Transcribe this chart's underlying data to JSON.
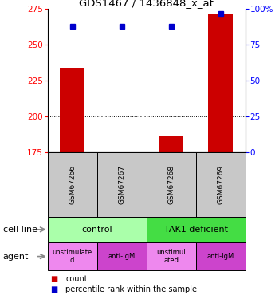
{
  "title": "GDS1467 / 1436848_x_at",
  "samples": [
    "GSM67266",
    "GSM67267",
    "GSM67268",
    "GSM67269"
  ],
  "bar_values": [
    234,
    175,
    187,
    271
  ],
  "bar_base": 175,
  "dot_values_pct": [
    88,
    88,
    88,
    97
  ],
  "ylim_left": [
    175,
    275
  ],
  "ylim_right": [
    0,
    100
  ],
  "yticks_left": [
    175,
    200,
    225,
    250,
    275
  ],
  "yticks_right": [
    0,
    25,
    50,
    75,
    100
  ],
  "bar_color": "#cc0000",
  "dot_color": "#0000cc",
  "cell_line_labels": [
    "control",
    "TAK1 deficient"
  ],
  "cell_line_spans": [
    [
      0,
      2
    ],
    [
      2,
      4
    ]
  ],
  "cell_line_colors": [
    "#aaffaa",
    "#44dd44"
  ],
  "agent_labels": [
    "unstimulate\nd",
    "anti-IgM",
    "unstimul\nated",
    "anti-IgM"
  ],
  "agent_colors": [
    "#ee88ee",
    "#cc44cc",
    "#ee88ee",
    "#cc44cc"
  ],
  "sample_bg_color": "#c8c8c8",
  "legend_count_color": "#cc0000",
  "legend_pct_color": "#0000cc",
  "left_col_labels": [
    "cell line",
    "agent"
  ],
  "arrow_color": "#888888"
}
